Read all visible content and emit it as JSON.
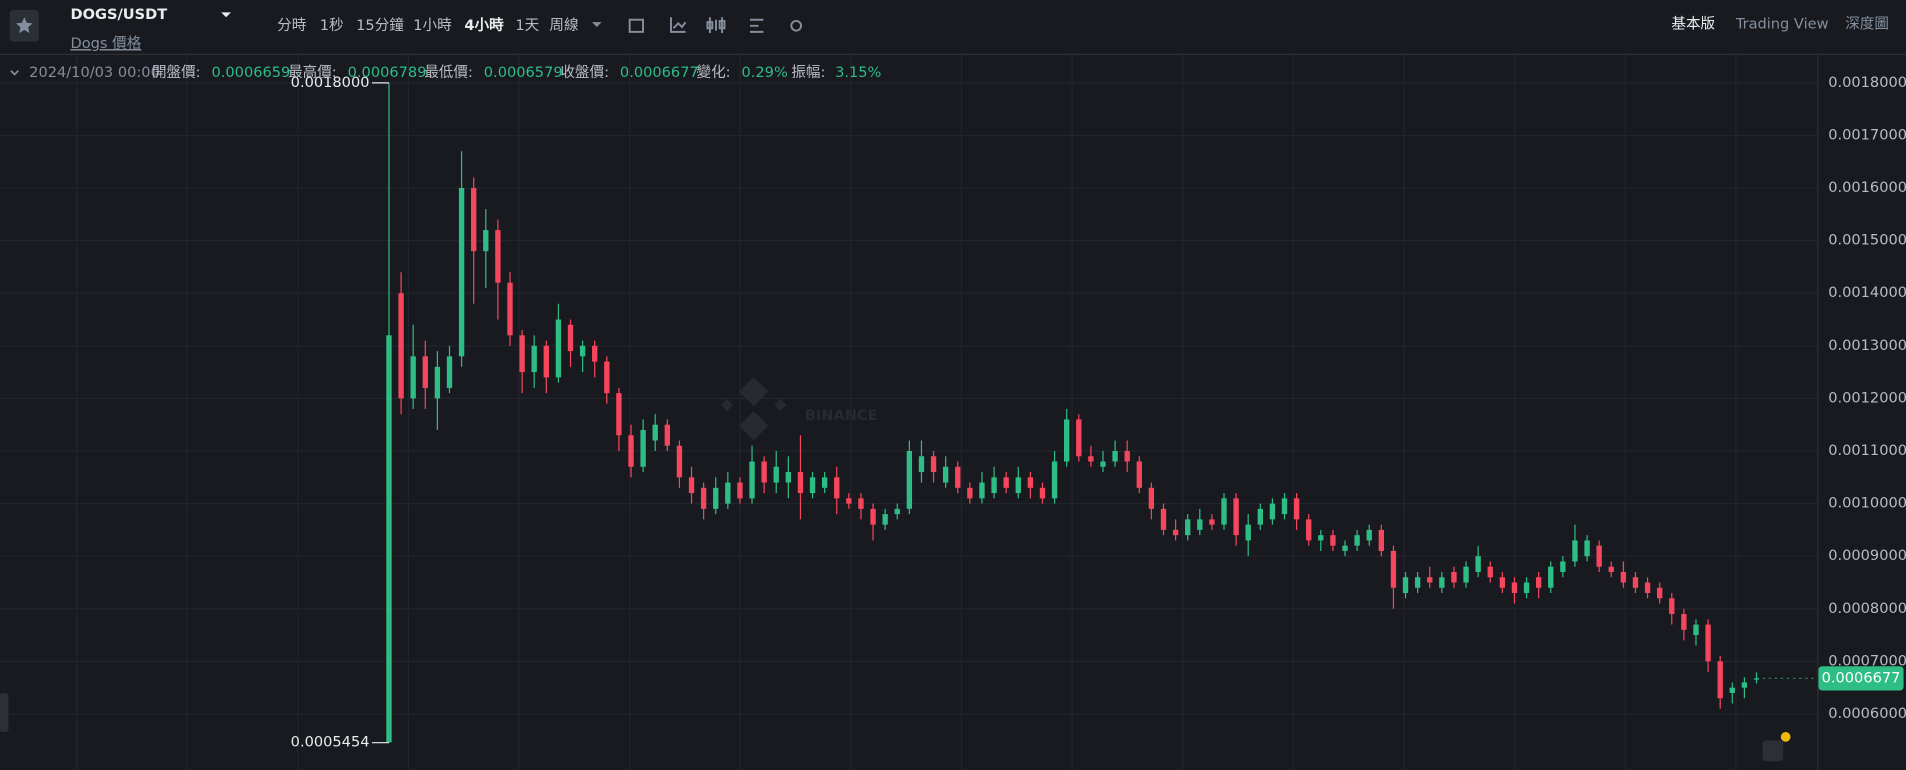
{
  "header": {
    "symbol": "DOGS/USDT",
    "subtitle": "Dogs 價格",
    "intervals": [
      "分時",
      "1秒",
      "15分鐘",
      "1小時",
      "4小時",
      "1天",
      "周線"
    ],
    "active_interval": 4,
    "views": [
      "基本版",
      "Trading View",
      "深度圖"
    ]
  },
  "info_bar": {
    "date": "2024/10/03 00:00",
    "items": [
      {
        "label": "開盤價:",
        "value": "0.0006659"
      },
      {
        "label": "最高價:",
        "value": "0.0006789"
      },
      {
        "label": "最低價:",
        "value": "0.0006579"
      },
      {
        "label": "收盤價:",
        "value": "0.0006677"
      },
      {
        "label": "變化:",
        "value": "0.29%"
      },
      {
        "label": "振幅:",
        "value": "3.15%"
      }
    ]
  },
  "chart_data": {
    "type": "candlestick",
    "watermark": "BINANCE",
    "up_color": "#2ebd85",
    "down_color": "#f6465d",
    "grid": true,
    "ylim": [
      0.000494,
      0.001853
    ],
    "yticks": [
      {
        "value": 0.0006,
        "label": "0.0006000"
      },
      {
        "value": 0.0007,
        "label": "0.0007000"
      },
      {
        "value": 0.0008,
        "label": "0.0008000"
      },
      {
        "value": 0.0009,
        "label": "0.0009000"
      },
      {
        "value": 0.001,
        "label": "0.0010000"
      },
      {
        "value": 0.0011,
        "label": "0.0011000"
      },
      {
        "value": 0.0012,
        "label": "0.0012000"
      },
      {
        "value": 0.0013,
        "label": "0.0013000"
      },
      {
        "value": 0.0014,
        "label": "0.0014000"
      },
      {
        "value": 0.0015,
        "label": "0.0015000"
      },
      {
        "value": 0.0016,
        "label": "0.0016000"
      },
      {
        "value": 0.0017,
        "label": "0.0017000"
      },
      {
        "value": 0.0018,
        "label": "0.0018000"
      }
    ],
    "max_marker": {
      "value": 0.0018,
      "label": "0.0018000"
    },
    "min_marker": {
      "value": 0.0005454,
      "label": "0.0005454"
    },
    "last_price": {
      "value": 0.0006677,
      "label": "0.0006677"
    },
    "open": [
      0.000546,
      0.0014,
      0.0012,
      0.00128,
      0.0012,
      0.00122,
      0.00128,
      0.0016,
      0.00148,
      0.00152,
      0.00142,
      0.00132,
      0.00125,
      0.0013,
      0.00124,
      0.00134,
      0.00128,
      0.0013,
      0.00127,
      0.00121,
      0.00113,
      0.00107,
      0.00112,
      0.00115,
      0.00111,
      0.00105,
      0.00103,
      0.00099,
      0.001,
      0.00104,
      0.00101,
      0.00108,
      0.00104,
      0.00104,
      0.00106,
      0.00102,
      0.00103,
      0.00105,
      0.00101,
      0.00101,
      0.00099,
      0.00096,
      0.00098,
      0.00099,
      0.00106,
      0.00109,
      0.00104,
      0.00107,
      0.00103,
      0.00101,
      0.00102,
      0.00105,
      0.00102,
      0.00105,
      0.00103,
      0.00101,
      0.00108,
      0.00116,
      0.00109,
      0.00107,
      0.00108,
      0.0011,
      0.00108,
      0.00103,
      0.00099,
      0.00095,
      0.00094,
      0.00095,
      0.00097,
      0.00096,
      0.00101,
      0.00093,
      0.00096,
      0.00097,
      0.00098,
      0.00101,
      0.00097,
      0.00093,
      0.00094,
      0.00091,
      0.00092,
      0.00093,
      0.00095,
      0.00091,
      0.00083,
      0.00084,
      0.00086,
      0.00084,
      0.00087,
      0.00085,
      0.00087,
      0.00088,
      0.00086,
      0.00085,
      0.00083,
      0.00086,
      0.00084,
      0.00087,
      0.00089,
      0.0009,
      0.00092,
      0.00088,
      0.00087,
      0.00086,
      0.00085,
      0.00084,
      0.00082,
      0.00079,
      0.00075,
      0.00077,
      0.0007,
      0.00064,
      0.00065,
      0.0006659
    ],
    "high": [
      0.0018,
      0.00144,
      0.00134,
      0.00131,
      0.00129,
      0.0013,
      0.00167,
      0.00162,
      0.00156,
      0.00154,
      0.00144,
      0.00133,
      0.00132,
      0.00131,
      0.00138,
      0.00135,
      0.00131,
      0.00131,
      0.00128,
      0.00122,
      0.00115,
      0.00116,
      0.00117,
      0.00116,
      0.00112,
      0.00107,
      0.00104,
      0.00105,
      0.00106,
      0.00105,
      0.00111,
      0.00109,
      0.0011,
      0.00109,
      0.00113,
      0.00106,
      0.00106,
      0.00107,
      0.00102,
      0.00102,
      0.001,
      0.00099,
      0.001,
      0.00112,
      0.00112,
      0.0011,
      0.00109,
      0.00108,
      0.00104,
      0.00106,
      0.00107,
      0.00106,
      0.00107,
      0.00106,
      0.00104,
      0.0011,
      0.00118,
      0.00117,
      0.00111,
      0.0011,
      0.00112,
      0.00112,
      0.00109,
      0.00104,
      0.001,
      0.00097,
      0.00098,
      0.00099,
      0.00098,
      0.00102,
      0.00102,
      0.00098,
      0.001,
      0.00101,
      0.00102,
      0.00102,
      0.00098,
      0.00095,
      0.00095,
      0.00093,
      0.00095,
      0.00096,
      0.00096,
      0.00092,
      0.00087,
      0.00087,
      0.00088,
      0.00087,
      0.00088,
      0.00089,
      0.00092,
      0.00089,
      0.00087,
      0.00086,
      0.00086,
      0.00087,
      0.00089,
      0.0009,
      0.00096,
      0.00094,
      0.00093,
      0.00089,
      0.00089,
      0.00087,
      0.00086,
      0.00085,
      0.00083,
      0.0008,
      0.00078,
      0.00078,
      0.00071,
      0.00066,
      0.00067,
      0.0006789
    ],
    "low": [
      0.0005454,
      0.00117,
      0.00118,
      0.00118,
      0.00114,
      0.00121,
      0.00126,
      0.00138,
      0.00141,
      0.00135,
      0.0013,
      0.00121,
      0.00122,
      0.00121,
      0.00123,
      0.00126,
      0.00125,
      0.00124,
      0.00119,
      0.0011,
      0.00105,
      0.00106,
      0.0011,
      0.0011,
      0.00103,
      0.001,
      0.00097,
      0.00098,
      0.00099,
      0.001,
      0.001,
      0.00102,
      0.00102,
      0.00101,
      0.00097,
      0.00101,
      0.00102,
      0.00098,
      0.00099,
      0.00097,
      0.00093,
      0.00095,
      0.00097,
      0.00098,
      0.00104,
      0.00104,
      0.00103,
      0.00102,
      0.001,
      0.001,
      0.00101,
      0.00102,
      0.00101,
      0.00101,
      0.001,
      0.001,
      0.00107,
      0.00108,
      0.00107,
      0.00106,
      0.00107,
      0.00106,
      0.00102,
      0.00097,
      0.00094,
      0.00093,
      0.00093,
      0.00094,
      0.00095,
      0.00095,
      0.00092,
      0.0009,
      0.00095,
      0.00096,
      0.00097,
      0.00095,
      0.00092,
      0.00091,
      0.00091,
      0.0009,
      0.00091,
      0.00092,
      0.0009,
      0.0008,
      0.00082,
      0.00083,
      0.00084,
      0.00083,
      0.00084,
      0.00084,
      0.00086,
      0.00085,
      0.00083,
      0.00081,
      0.00082,
      0.00082,
      0.00083,
      0.00086,
      0.00088,
      0.00089,
      0.00087,
      0.00086,
      0.00084,
      0.00083,
      0.00082,
      0.00081,
      0.00077,
      0.00074,
      0.00073,
      0.00068,
      0.00061,
      0.00062,
      0.00063,
      0.0006579
    ],
    "close": [
      0.00132,
      0.0012,
      0.00128,
      0.00122,
      0.00126,
      0.00128,
      0.0016,
      0.00148,
      0.00152,
      0.00142,
      0.00132,
      0.00125,
      0.0013,
      0.00124,
      0.00135,
      0.00129,
      0.0013,
      0.00127,
      0.00121,
      0.00113,
      0.00107,
      0.00114,
      0.00115,
      0.00111,
      0.00105,
      0.00102,
      0.00099,
      0.00103,
      0.00104,
      0.00101,
      0.00108,
      0.00104,
      0.00107,
      0.00106,
      0.00102,
      0.00105,
      0.00105,
      0.00101,
      0.001,
      0.00099,
      0.00096,
      0.00098,
      0.00099,
      0.0011,
      0.00109,
      0.00106,
      0.00107,
      0.00103,
      0.00101,
      0.00104,
      0.00105,
      0.00103,
      0.00105,
      0.00103,
      0.00101,
      0.00108,
      0.00116,
      0.00109,
      0.00108,
      0.00108,
      0.0011,
      0.00108,
      0.00103,
      0.00099,
      0.00095,
      0.00094,
      0.00097,
      0.00097,
      0.00096,
      0.00101,
      0.00094,
      0.00096,
      0.00099,
      0.001,
      0.00101,
      0.00097,
      0.00093,
      0.00094,
      0.00092,
      0.00092,
      0.00094,
      0.00095,
      0.00091,
      0.00084,
      0.00086,
      0.00086,
      0.00085,
      0.00086,
      0.00085,
      0.00088,
      0.0009,
      0.00086,
      0.00084,
      0.00083,
      0.00085,
      0.00084,
      0.00088,
      0.00089,
      0.00093,
      0.00093,
      0.00088,
      0.00087,
      0.00085,
      0.00084,
      0.00083,
      0.00082,
      0.00079,
      0.00076,
      0.00077,
      0.0007,
      0.00063,
      0.00065,
      0.00066,
      0.0006677
    ]
  }
}
